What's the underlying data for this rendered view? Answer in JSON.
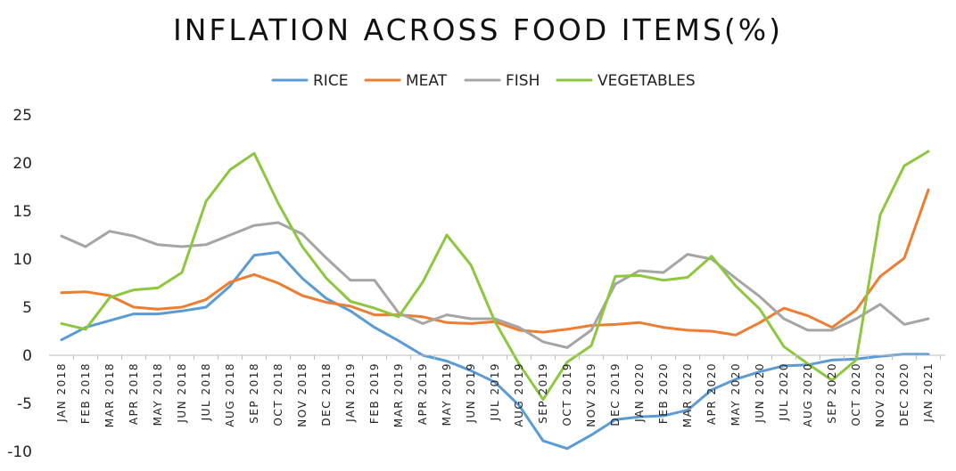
{
  "chart_data": {
    "type": "line",
    "title": "INFLATION ACROSS FOOD ITEMS(%)",
    "xlabel": "",
    "ylabel": "",
    "ylim": [
      -10,
      25
    ],
    "yticks": [
      25,
      20,
      15,
      10,
      5,
      0,
      -5,
      -10
    ],
    "grid": false,
    "legend_position": "top",
    "categories": [
      "JAN 2018",
      "FEB 2018",
      "MAR 2018",
      "APR 2018",
      "MAY 2018",
      "JUN 2018",
      "JUL 2018",
      "AUG 2018",
      "SEP 2018",
      "OCT 2018",
      "NOV 2018",
      "DEC 2018",
      "JAN 2019",
      "FEB 2019",
      "MAR 2019",
      "APR 2019",
      "MAY 2019",
      "JUN 2019",
      "JUL 2019",
      "AUG 2019",
      "SEP 2019",
      "OCT 2019",
      "NOV 2019",
      "DEC 2019",
      "JAN 2020",
      "FEB 2020",
      "MAR 2020",
      "APR 2020",
      "MAY 2020",
      "JUN 2020",
      "JUL 2020",
      "AUG 2020",
      "SEP 2020",
      "OCT 2020",
      "NOV 2020",
      "DEC 2020",
      "JAN 2021"
    ],
    "series": [
      {
        "name": "RICE",
        "color": "#5b9bd5",
        "values": [
          1.6,
          2.9,
          3.6,
          4.3,
          4.3,
          4.6,
          5.0,
          7.2,
          10.4,
          10.7,
          8.0,
          5.9,
          4.6,
          2.9,
          1.5,
          0.0,
          -0.6,
          -1.6,
          -2.8,
          -5.2,
          -8.9,
          -9.7,
          -8.3,
          -6.7,
          -6.4,
          -6.3,
          -5.7,
          -3.6,
          -2.5,
          -1.7,
          -1.1,
          -1.0,
          -0.5,
          -0.4,
          -0.1,
          0.1,
          0.1
        ]
      },
      {
        "name": "MEAT",
        "color": "#ed7d31",
        "values": [
          6.5,
          6.6,
          6.2,
          5.0,
          4.8,
          5.0,
          5.8,
          7.6,
          8.4,
          7.5,
          6.2,
          5.5,
          5.1,
          4.2,
          4.2,
          4.0,
          3.4,
          3.3,
          3.5,
          2.6,
          2.4,
          2.7,
          3.1,
          3.2,
          3.4,
          2.9,
          2.6,
          2.5,
          2.1,
          3.4,
          4.9,
          4.1,
          2.9,
          4.7,
          8.2,
          10.1,
          17.2
        ]
      },
      {
        "name": "FISH",
        "color": "#a5a5a5",
        "values": [
          12.4,
          11.3,
          12.9,
          12.4,
          11.5,
          11.3,
          11.5,
          12.5,
          13.5,
          13.8,
          12.6,
          10.1,
          7.8,
          7.8,
          4.4,
          3.3,
          4.2,
          3.8,
          3.8,
          2.9,
          1.4,
          0.8,
          2.6,
          7.4,
          8.8,
          8.6,
          10.5,
          10.0,
          8.0,
          6.1,
          3.8,
          2.6,
          2.6,
          3.8,
          5.3,
          3.2,
          3.8
        ]
      },
      {
        "name": "VEGETABLES",
        "color": "#8dc63f",
        "values": [
          3.3,
          2.7,
          6.0,
          6.8,
          7.0,
          8.6,
          16.0,
          19.3,
          21.0,
          15.8,
          11.3,
          8.0,
          5.6,
          4.9,
          4.0,
          7.6,
          12.5,
          9.4,
          3.5,
          -0.9,
          -4.6,
          -0.7,
          1.0,
          8.2,
          8.3,
          7.8,
          8.1,
          10.3,
          7.2,
          4.8,
          0.9,
          -0.9,
          -2.6,
          -0.5,
          14.6,
          19.7,
          21.2
        ]
      }
    ]
  }
}
